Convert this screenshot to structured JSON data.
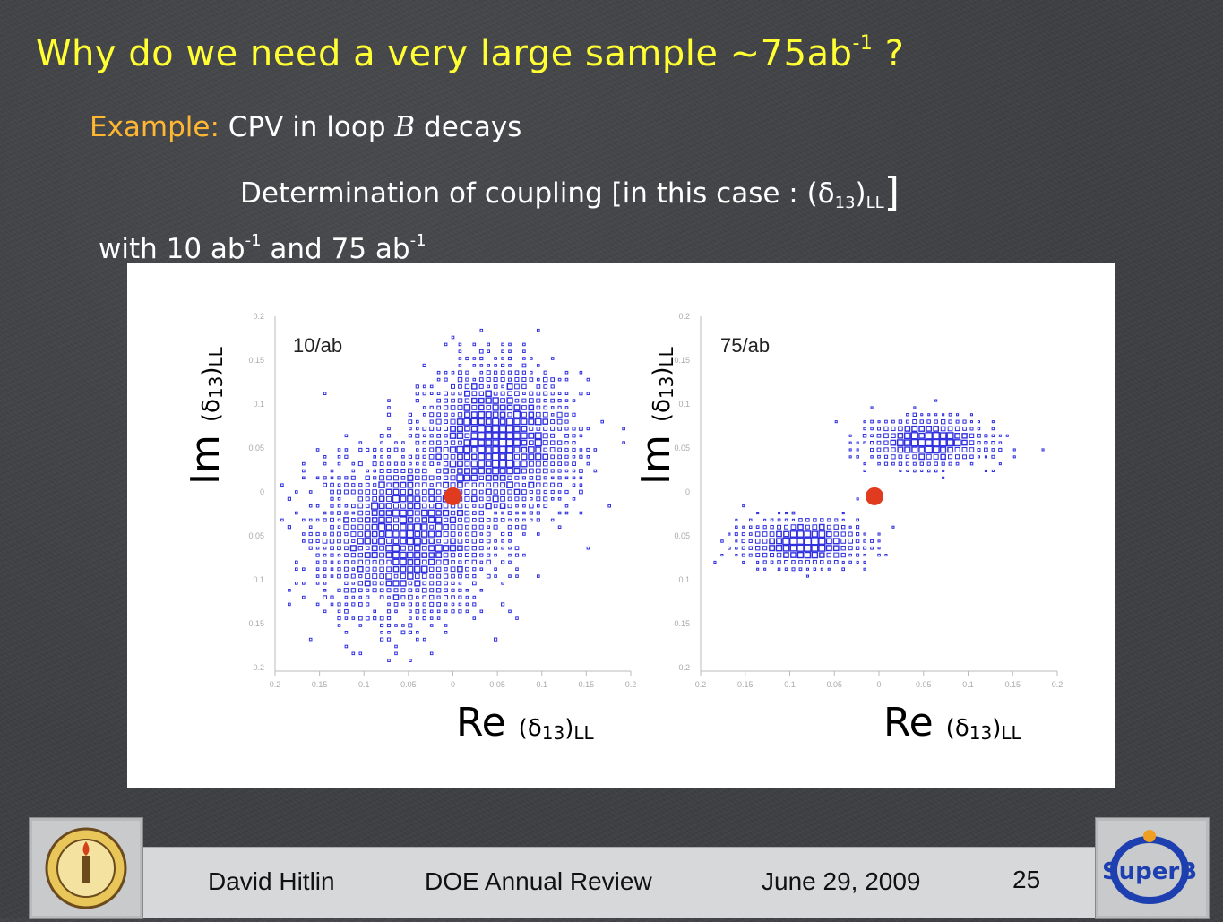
{
  "slide": {
    "title": "Why do we need a very large sample ~75ab",
    "title_sup": "-1",
    "title_end": " ?",
    "example_label": "Example:",
    "example_text": "CPV in loop ",
    "example_B": "B",
    "example_end": " decays",
    "determination": "Determination of coupling [in this case : (δ",
    "det_sub13": "13",
    "det_close": ")",
    "det_subLL": "LL",
    "det_bracket": "]",
    "with_a": "with  10 ab",
    "with_sup1": "-1",
    "with_b": " and  75  ab",
    "with_sup2": "-1"
  },
  "plots": [
    {
      "label": "10/ab",
      "y_title": "Im",
      "x_title": "Re",
      "delta": "(δ",
      "sub13": "13",
      "close": ")",
      "subLL": "LL"
    },
    {
      "label": "75/ab",
      "y_title": "Im",
      "x_title": "Re",
      "delta": "(δ",
      "sub13": "13",
      "close": ")",
      "subLL": "LL"
    }
  ],
  "chart_data": [
    {
      "type": "heatmap",
      "title": "10/ab",
      "xlabel": "Re (δ13)LL",
      "ylabel": "Im (δ13)LL",
      "xlim": [
        -0.2,
        0.2
      ],
      "ylim": [
        -0.2,
        0.2
      ],
      "x_ticks": [
        "0.2",
        "0.15",
        "0.1",
        "0.05",
        "0",
        "0.05",
        "0.1",
        "0.15",
        "0.2"
      ],
      "y_ticks": [
        "0.2",
        "0.15",
        "0.1",
        "0.05",
        "0",
        "0.05",
        "0.1",
        "0.15",
        "0.2"
      ],
      "true_point": [
        0.0,
        -0.005
      ],
      "clusters": [
        {
          "center": [
            -0.055,
            -0.05
          ],
          "spread": [
            0.045,
            0.045
          ],
          "weight": 1
        },
        {
          "center": [
            0.05,
            0.055
          ],
          "spread": [
            0.04,
            0.04
          ],
          "weight": 1
        }
      ]
    },
    {
      "type": "heatmap",
      "title": "75/ab",
      "xlabel": "Re (δ13)LL",
      "ylabel": "Im (δ13)LL",
      "xlim": [
        -0.2,
        0.2
      ],
      "ylim": [
        -0.2,
        0.2
      ],
      "x_ticks": [
        "0.2",
        "0.15",
        "0.1",
        "0.05",
        "0",
        "0.05",
        "0.1",
        "0.15",
        "0.2"
      ],
      "y_ticks": [
        "0.2",
        "0.15",
        "0.1",
        "0.05",
        "0",
        "0.05",
        "0.1",
        "0.15",
        "0.2"
      ],
      "true_point": [
        -0.005,
        -0.005
      ],
      "clusters": [
        {
          "center": [
            -0.085,
            -0.058
          ],
          "spread": [
            0.03,
            0.012
          ],
          "weight": 1
        },
        {
          "center": [
            0.055,
            0.057
          ],
          "spread": [
            0.03,
            0.012
          ],
          "weight": 1
        }
      ]
    }
  ],
  "footer": {
    "author": "David Hitlin",
    "event": "DOE Annual Review",
    "date": "June 29, 2009",
    "page": "25"
  },
  "colors": {
    "title": "#ffff33",
    "example": "#ffb733",
    "marker": "#3030e0",
    "truth": "#e03a1f"
  }
}
